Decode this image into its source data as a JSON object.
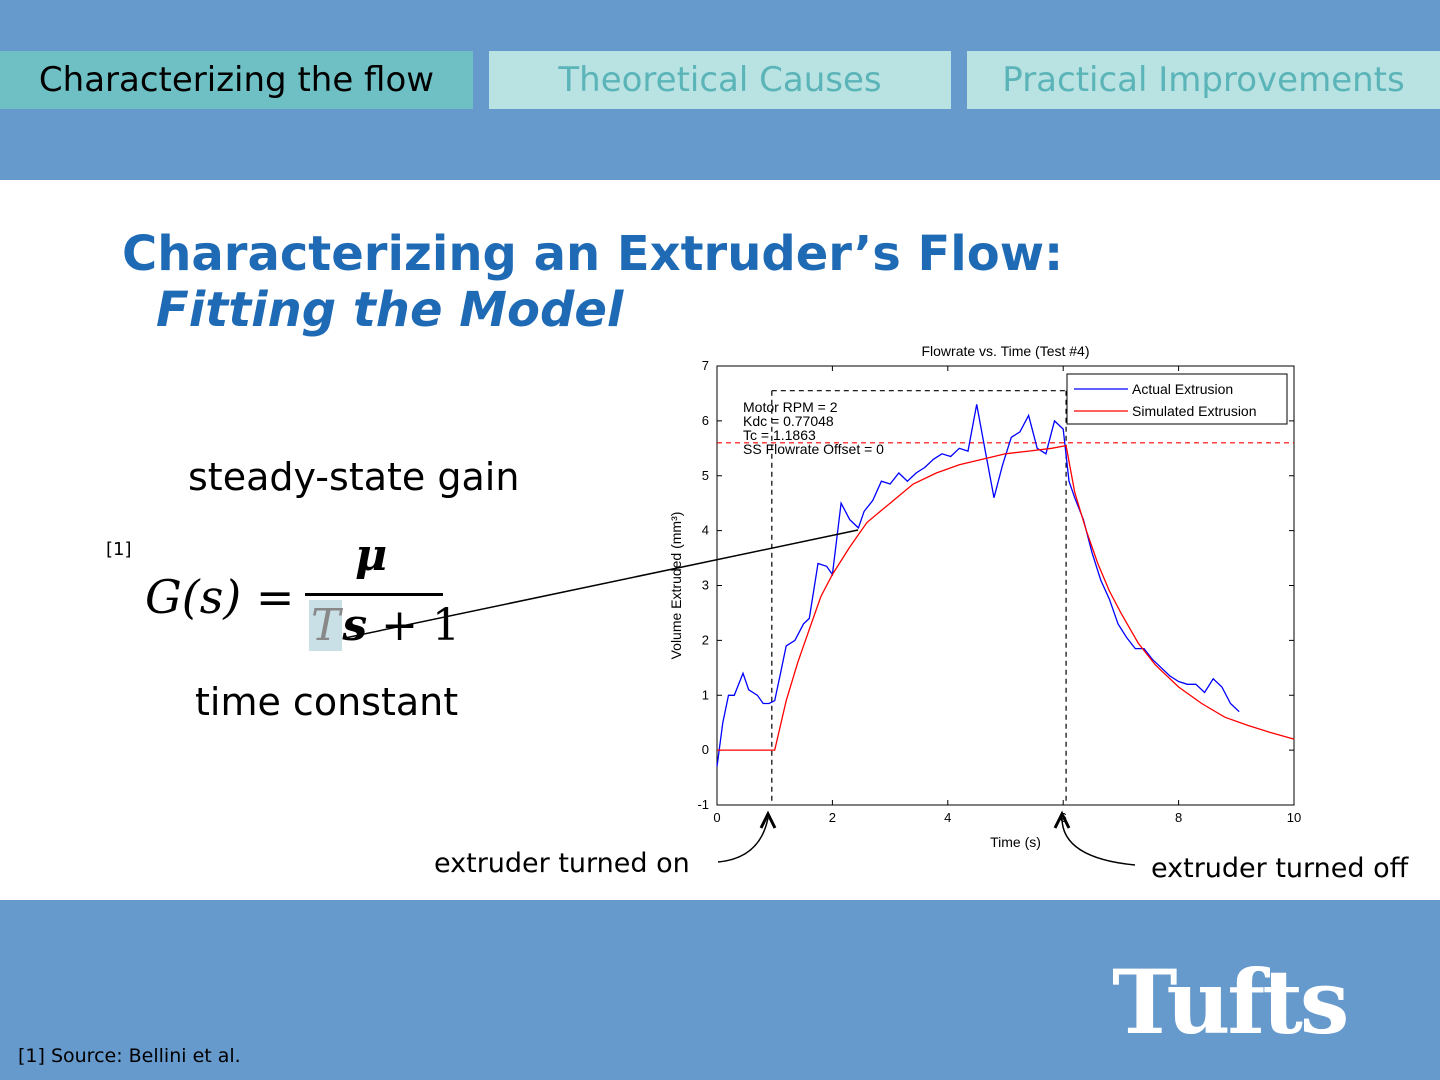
{
  "tabs": [
    {
      "label": "Characterizing the flow"
    },
    {
      "label": "Theoretical Causes"
    },
    {
      "label": "Practical Improvements"
    }
  ],
  "slide": {
    "title": "Characterizing an Extruder’s Flow:",
    "subtitle": "Fitting the Model",
    "label_gain": "steady-state gain",
    "label_tc": "time constant",
    "ref_marker": "[1]",
    "equation": {
      "lhs": "G(s) =",
      "numerator": "μ",
      "den_T": "T",
      "den_s": "s",
      "den_rest": " + 1"
    },
    "annotation_on": "extruder turned on",
    "annotation_off": "extruder turned off",
    "footnote": "[1] Source: Bellini et al.",
    "logo_text": "Tufts"
  },
  "colors": {
    "band": "#6699cc",
    "tab_active": "#6fc0c4",
    "tab_inactive": "#b9e2e2",
    "tab_inactive_text": "#5ab4b8",
    "title": "#1f6ab5",
    "actual": "#0000ff",
    "simulated": "#ff0000"
  },
  "chart_data": {
    "type": "line",
    "title": "Flowrate vs. Time (Test #4)",
    "xlabel": "Time (s)",
    "ylabel": "Volume Extruded (mm³)",
    "xlim": [
      0,
      10
    ],
    "ylim": [
      -1,
      7
    ],
    "xticks": [
      0,
      2,
      4,
      6,
      8,
      10
    ],
    "yticks": [
      -1,
      0,
      1,
      2,
      3,
      4,
      5,
      6,
      7
    ],
    "legend_position": "top-right",
    "info_text": [
      "Motor RPM = 2",
      "Kdc = 0.77048",
      "Tc = 1.1863",
      "SS Flowrate Offset = 0"
    ],
    "reference_lines": {
      "steady_state_y": 5.6,
      "on_x": 0.95,
      "off_x": 6.05,
      "box_top_y": 6.55
    },
    "series": [
      {
        "name": "Actual Extrusion",
        "color": "#0000ff",
        "x": [
          0.0,
          0.1,
          0.2,
          0.3,
          0.45,
          0.55,
          0.7,
          0.8,
          0.9,
          1.0,
          1.1,
          1.2,
          1.35,
          1.5,
          1.6,
          1.75,
          1.9,
          2.0,
          2.15,
          2.3,
          2.45,
          2.55,
          2.7,
          2.85,
          3.0,
          3.15,
          3.3,
          3.45,
          3.6,
          3.75,
          3.9,
          4.05,
          4.2,
          4.35,
          4.5,
          4.65,
          4.8,
          4.95,
          5.1,
          5.25,
          5.4,
          5.55,
          5.7,
          5.85,
          6.0,
          6.1,
          6.2,
          6.35,
          6.5,
          6.65,
          6.8,
          6.95,
          7.1,
          7.25,
          7.4,
          7.55,
          7.7,
          7.85,
          8.0,
          8.15,
          8.3,
          8.45,
          8.6,
          8.75,
          8.9,
          9.05
        ],
        "y": [
          -0.3,
          0.5,
          1.0,
          1.0,
          1.4,
          1.1,
          1.0,
          0.85,
          0.85,
          0.9,
          1.4,
          1.9,
          2.0,
          2.3,
          2.4,
          3.4,
          3.35,
          3.2,
          4.5,
          4.2,
          4.05,
          4.35,
          4.55,
          4.9,
          4.85,
          5.05,
          4.9,
          5.05,
          5.15,
          5.3,
          5.4,
          5.35,
          5.5,
          5.45,
          6.3,
          5.45,
          4.6,
          5.2,
          5.7,
          5.8,
          6.1,
          5.5,
          5.4,
          6.0,
          5.85,
          4.9,
          4.6,
          4.2,
          3.6,
          3.1,
          2.75,
          2.3,
          2.05,
          1.85,
          1.85,
          1.65,
          1.5,
          1.35,
          1.25,
          1.2,
          1.2,
          1.05,
          1.3,
          1.15,
          0.85,
          0.7
        ]
      },
      {
        "name": "Simulated Extrusion",
        "color": "#ff0000",
        "x": [
          0,
          1.0,
          1.2,
          1.4,
          1.6,
          1.8,
          2.0,
          2.3,
          2.6,
          3.0,
          3.4,
          3.8,
          4.2,
          4.6,
          5.0,
          5.4,
          5.8,
          6.05,
          6.2,
          6.4,
          6.6,
          6.8,
          7.0,
          7.3,
          7.6,
          8.0,
          8.4,
          8.8,
          9.2,
          9.6,
          10.0
        ],
        "y": [
          0,
          0,
          0.9,
          1.6,
          2.2,
          2.8,
          3.2,
          3.7,
          4.15,
          4.5,
          4.85,
          5.05,
          5.2,
          5.3,
          5.4,
          5.45,
          5.5,
          5.55,
          4.7,
          4.0,
          3.4,
          2.9,
          2.5,
          1.95,
          1.55,
          1.15,
          0.85,
          0.6,
          0.45,
          0.32,
          0.2
        ]
      }
    ]
  }
}
